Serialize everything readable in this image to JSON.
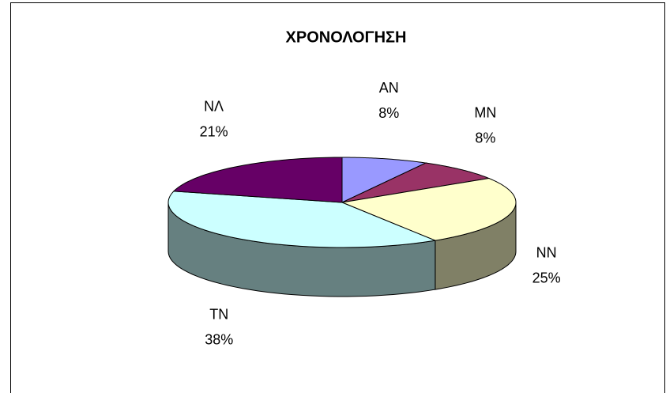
{
  "chart_data": {
    "type": "pie",
    "title": "ΧΡΟΝΟΛΟΓΗΣΗ",
    "categories": [
      "AN",
      "MN",
      "NN",
      "TN",
      "NΛ"
    ],
    "values": [
      8,
      8,
      25,
      38,
      21
    ],
    "value_labels": [
      "8%",
      "8%",
      "25%",
      "38%",
      "21%"
    ],
    "colors": [
      "#9999ff",
      "#993366",
      "#ffffcc",
      "#ccffff",
      "#660066"
    ]
  }
}
